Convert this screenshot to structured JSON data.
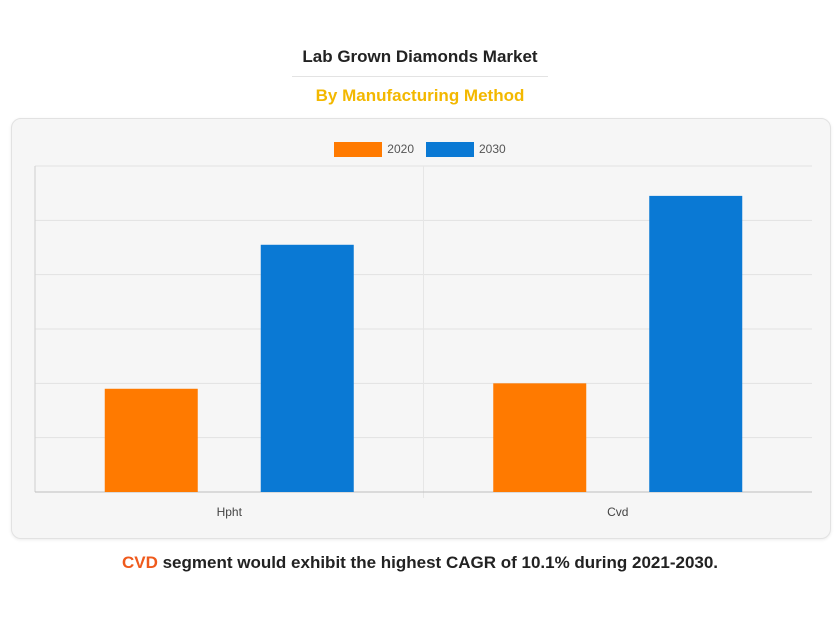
{
  "title": "Lab Grown Diamonds Market",
  "subtitle": "By Manufacturing Method",
  "colors": {
    "subtitle": "#f3b800",
    "series_2020": "#ff7a00",
    "series_2030": "#0a79d4",
    "footer_highlight": "#ef5a1c"
  },
  "footer": {
    "highlight": "CVD",
    "text": " segment would exhibit the highest CAGR of 10.1% during 2021-2030."
  },
  "chart_data": {
    "type": "bar",
    "categories": [
      "Hpht",
      "Cvd"
    ],
    "series": [
      {
        "name": "2020",
        "values": [
          1.9,
          2.0
        ]
      },
      {
        "name": "2030",
        "values": [
          4.55,
          5.45
        ]
      }
    ],
    "ylim": [
      0,
      6
    ],
    "y_gridlines": 6,
    "grid": true,
    "y_tick_labels_shown": false,
    "legend_position": "top-center"
  }
}
